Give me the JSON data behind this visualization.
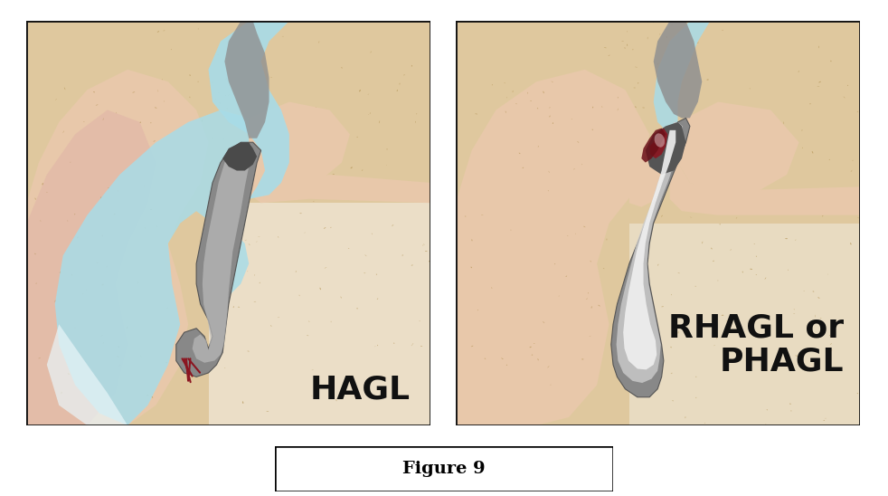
{
  "figure_width": 9.82,
  "figure_height": 5.48,
  "dpi": 100,
  "background_color": "#ffffff",
  "figure_caption": "Figure 9",
  "caption_fontsize": 14,
  "left_label": "HAGL",
  "right_label": "RHAGL or\nPHAGL",
  "label_fontsize": 26,
  "label_color": "#111111",
  "bone_color": "#dfc89e",
  "bone_spot_color": "#b09050",
  "skin_peach": "#e8c8aa",
  "skin_pink": "#e0b4a8",
  "fluid_blue": "#a8dce8",
  "white_color": "#ffffff",
  "gray_dark": "#555555",
  "gray_mid": "#888888",
  "gray_light": "#c0c0c0",
  "blue_gray": "#8ab0c0",
  "tear_red": "#8b1520",
  "tear_dark": "#5a0a10",
  "panel_border": "#111111"
}
